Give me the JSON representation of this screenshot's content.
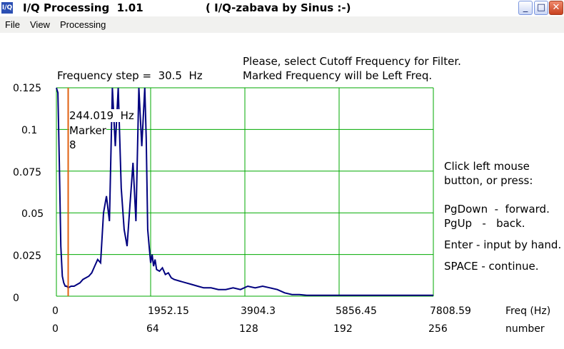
{
  "window": {
    "title": "I/Q Processing  1.01",
    "subtitle": "( I/Q-zabava by Sinus :-)",
    "icon_label": "I/Q",
    "minimize_label": "_",
    "maximize_label": "□",
    "close_label": "✕"
  },
  "menu": {
    "file": "File",
    "view": "View",
    "processing": "Processing"
  },
  "instructions": {
    "line1": "Please, select Cutoff Frequency for Filter.",
    "line2": "Marked Frequency will be Left Freq."
  },
  "frequency_step": "Frequency step =  30.5  Hz",
  "marker": {
    "freq_label": "244.019  Hz",
    "name": "Marker",
    "index": "8",
    "frequency_hz": 244.019
  },
  "help": {
    "line1": "Click left mouse",
    "line2": "button, or press:",
    "line3": "PgDown  -  forward.",
    "line4": "PgUp   -   back.",
    "line5": "Enter - input by hand.",
    "line6": "SPACE - continue."
  },
  "chart_data": {
    "type": "line",
    "ylim": [
      0,
      0.125
    ],
    "xlim": [
      0,
      256
    ],
    "y_ticks": [
      "0.125",
      "0.1",
      "0.075",
      "0.05",
      "0.025",
      "0"
    ],
    "x_ticks_freq": [
      "0",
      "1952.15",
      "3904.3",
      "5856.45",
      "7808.59"
    ],
    "x_ticks_number": [
      "0",
      "64",
      "128",
      "192",
      "256"
    ],
    "x_unit_freq": "Freq (Hz)",
    "x_unit_number": "number",
    "grid": true,
    "colors": {
      "grid": "#00aa00",
      "line": "#00007f",
      "marker": "#e06010"
    },
    "marker_x": 8,
    "series": [
      {
        "x": [
          0,
          1,
          2,
          3,
          4,
          5,
          6,
          7,
          8,
          10,
          12,
          14,
          16,
          18,
          20,
          22,
          24,
          26,
          28,
          30,
          32,
          34,
          36,
          38,
          40,
          42,
          44,
          46,
          48,
          50,
          52,
          54,
          56,
          58,
          60,
          61,
          62,
          63,
          64,
          65,
          66,
          67,
          68,
          70,
          72,
          74,
          76,
          78,
          80,
          84,
          88,
          92,
          96,
          100,
          105,
          110,
          115,
          120,
          125,
          130,
          135,
          140,
          145,
          150,
          155,
          160,
          165,
          170,
          175,
          180,
          185,
          190,
          200,
          220,
          240,
          256
        ],
        "y": [
          0.125,
          0.122,
          0.08,
          0.03,
          0.012,
          0.008,
          0.006,
          0.006,
          0.005,
          0.006,
          0.006,
          0.007,
          0.008,
          0.01,
          0.011,
          0.012,
          0.014,
          0.018,
          0.022,
          0.02,
          0.05,
          0.06,
          0.045,
          0.125,
          0.09,
          0.125,
          0.065,
          0.04,
          0.03,
          0.055,
          0.08,
          0.045,
          0.125,
          0.09,
          0.125,
          0.095,
          0.04,
          0.03,
          0.02,
          0.025,
          0.018,
          0.022,
          0.016,
          0.015,
          0.017,
          0.013,
          0.014,
          0.011,
          0.01,
          0.009,
          0.008,
          0.007,
          0.006,
          0.005,
          0.005,
          0.004,
          0.004,
          0.005,
          0.004,
          0.006,
          0.005,
          0.006,
          0.005,
          0.004,
          0.002,
          0.001,
          0.001,
          0.0005,
          0.0005,
          0.0005,
          0.0005,
          0.0005,
          0.0005,
          0.0005,
          0.0005,
          0.0005
        ]
      }
    ]
  }
}
